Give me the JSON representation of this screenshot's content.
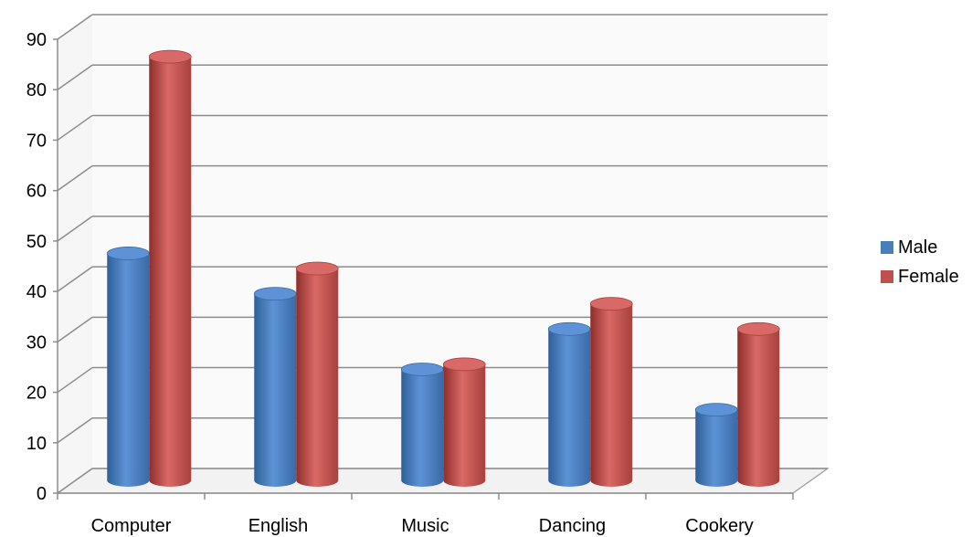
{
  "chart_data": {
    "type": "bar",
    "categories": [
      "Computer",
      "English",
      "Music",
      "Dancing",
      "Cookery"
    ],
    "series": [
      {
        "name": "Male",
        "values": [
          45,
          37,
          22,
          30,
          14
        ],
        "color": "#4a7ebb"
      },
      {
        "name": "Female",
        "values": [
          84,
          42,
          23,
          35,
          30
        ],
        "color": "#c0504d"
      }
    ],
    "yticks": [
      "0",
      "10",
      "20",
      "30",
      "40",
      "50",
      "60",
      "70",
      "80",
      "90"
    ],
    "ylim": [
      0,
      90
    ],
    "grid": true,
    "legend_position": "right",
    "style": "3d-cylinder"
  }
}
